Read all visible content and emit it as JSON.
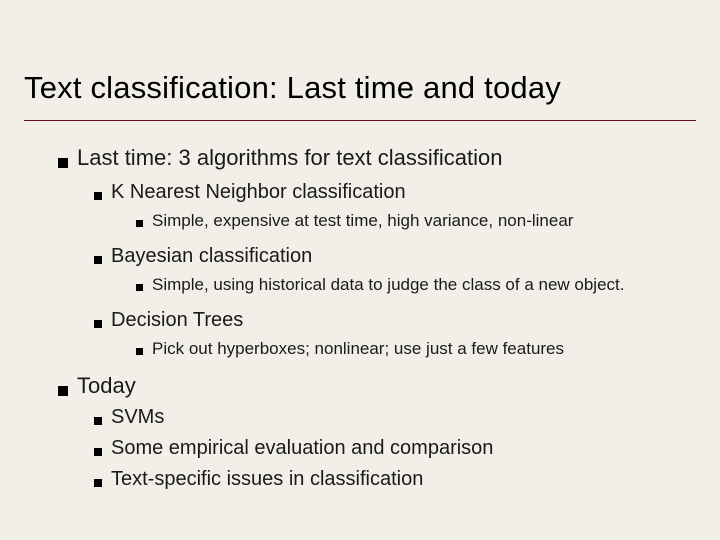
{
  "colors": {
    "background": "#f1efe8",
    "text": "#1a1a1a",
    "rule": "#6b0f17",
    "bullet": "#000000"
  },
  "typography": {
    "title_fontsize": 31,
    "lvl1_fontsize": 22,
    "lvl2_fontsize": 20,
    "lvl3_fontsize": 17,
    "font_family": "Arial"
  },
  "title": "Text classification: Last time and today",
  "points": {
    "last_time": {
      "label": "Last time: 3 algorithms for text classification",
      "items": {
        "knn": {
          "label": "K Nearest Neighbor classification",
          "detail": "Simple, expensive at test time, high variance, non-linear"
        },
        "bayes": {
          "label": "Bayesian classification",
          "detail": "Simple, using historical data to judge the class of a new object."
        },
        "dtree": {
          "label": "Decision Trees",
          "detail": "Pick out hyperboxes; nonlinear; use just a few features"
        }
      }
    },
    "today": {
      "label": "Today",
      "items": {
        "svm": "SVMs",
        "eval": "Some empirical evaluation and comparison",
        "text": "Text-specific issues in classification"
      }
    }
  }
}
